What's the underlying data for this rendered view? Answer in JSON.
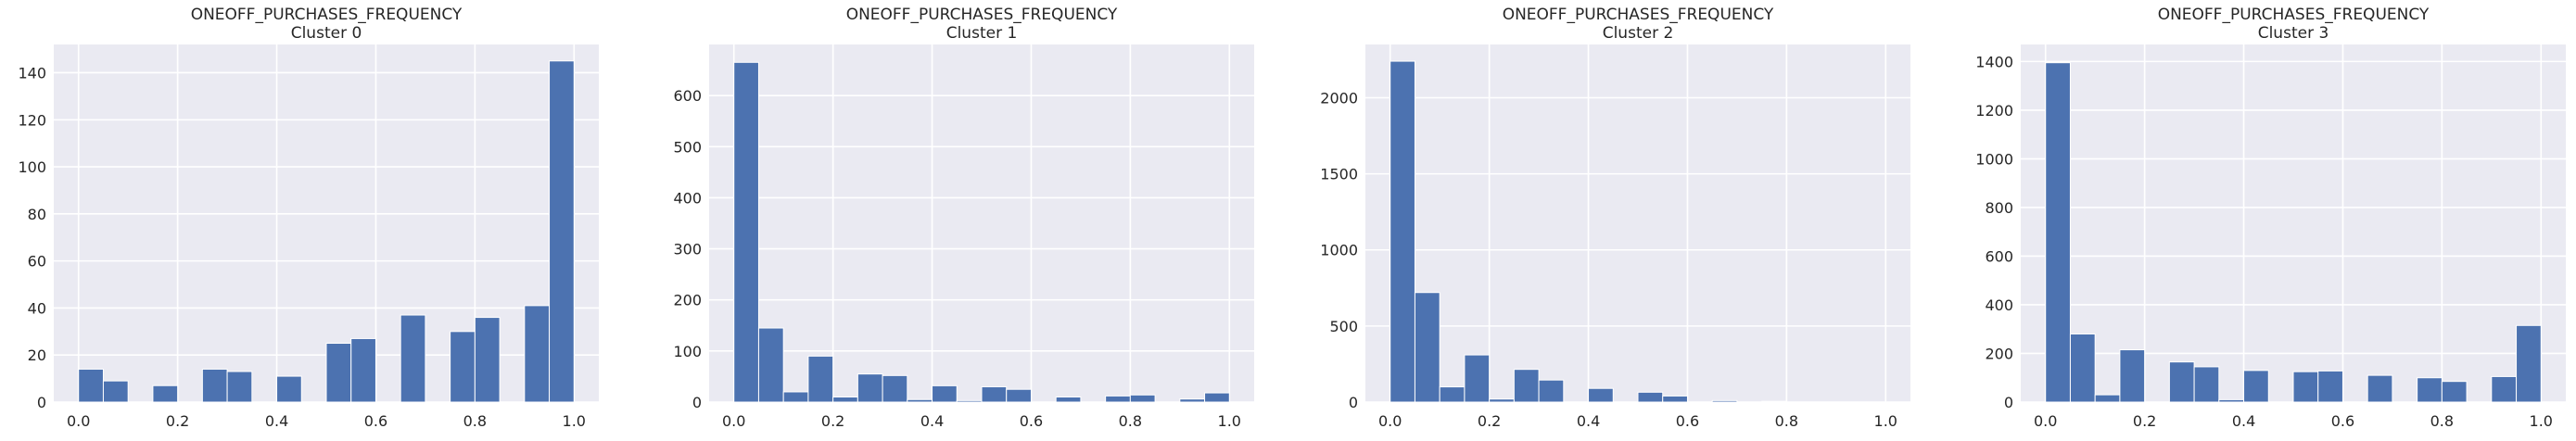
{
  "chart_data": [
    {
      "type": "bar",
      "title": "ONEOFF_PURCHASES_FREQUENCY",
      "subtitle": "Cluster 0",
      "xlim": [
        -0.05,
        1.05
      ],
      "ylim": [
        0,
        152
      ],
      "xticks": [
        0.0,
        0.2,
        0.4,
        0.6,
        0.8,
        1.0
      ],
      "xtick_labels": [
        "0.0",
        "0.2",
        "0.4",
        "0.6",
        "0.8",
        "1.0"
      ],
      "yticks": [
        0,
        20,
        40,
        60,
        80,
        100,
        120,
        140
      ],
      "ytick_labels": [
        "0",
        "20",
        "40",
        "60",
        "80",
        "100",
        "120",
        "140"
      ],
      "bin_edges": [
        0.0,
        0.05,
        0.1,
        0.15,
        0.2,
        0.25,
        0.3,
        0.35,
        0.4,
        0.45,
        0.5,
        0.55,
        0.6,
        0.65,
        0.7,
        0.75,
        0.8,
        0.85,
        0.9,
        0.95,
        1.0
      ],
      "values": [
        14,
        9,
        0,
        7,
        0,
        14,
        13,
        0,
        11,
        0,
        25,
        27,
        0,
        37,
        0,
        30,
        36,
        0,
        41,
        145
      ],
      "bar_color": "#4c72b0",
      "grid": true
    },
    {
      "type": "bar",
      "title": "ONEOFF_PURCHASES_FREQUENCY",
      "subtitle": "Cluster 1",
      "xlim": [
        -0.05,
        1.05
      ],
      "ylim": [
        0,
        700
      ],
      "xticks": [
        0.0,
        0.2,
        0.4,
        0.6,
        0.8,
        1.0
      ],
      "xtick_labels": [
        "0.0",
        "0.2",
        "0.4",
        "0.6",
        "0.8",
        "1.0"
      ],
      "yticks": [
        0,
        100,
        200,
        300,
        400,
        500,
        600
      ],
      "ytick_labels": [
        "0",
        "100",
        "200",
        "300",
        "400",
        "500",
        "600"
      ],
      "bin_edges": [
        0.0,
        0.05,
        0.1,
        0.15,
        0.2,
        0.25,
        0.3,
        0.35,
        0.4,
        0.45,
        0.5,
        0.55,
        0.6,
        0.65,
        0.7,
        0.75,
        0.8,
        0.85,
        0.9,
        0.95,
        1.0
      ],
      "values": [
        665,
        145,
        20,
        90,
        10,
        55,
        52,
        5,
        32,
        3,
        30,
        25,
        0,
        10,
        0,
        12,
        14,
        0,
        6,
        18
      ],
      "bar_color": "#4c72b0",
      "grid": true
    },
    {
      "type": "bar",
      "title": "ONEOFF_PURCHASES_FREQUENCY",
      "subtitle": "Cluster 2",
      "xlim": [
        -0.05,
        1.05
      ],
      "ylim": [
        0,
        2350
      ],
      "xticks": [
        0.0,
        0.2,
        0.4,
        0.6,
        0.8,
        1.0
      ],
      "xtick_labels": [
        "0.0",
        "0.2",
        "0.4",
        "0.6",
        "0.8",
        "1.0"
      ],
      "yticks": [
        0,
        500,
        1000,
        1500,
        2000
      ],
      "ytick_labels": [
        "0",
        "500",
        "1000",
        "1500",
        "2000"
      ],
      "bin_edges": [
        0.0,
        0.05,
        0.1,
        0.15,
        0.2,
        0.25,
        0.3,
        0.35,
        0.4,
        0.45,
        0.5,
        0.55,
        0.6,
        0.65,
        0.7,
        0.75,
        0.8,
        0.85,
        0.9,
        0.95,
        1.0
      ],
      "values": [
        2240,
        720,
        100,
        310,
        20,
        215,
        145,
        0,
        90,
        0,
        65,
        40,
        0,
        10,
        0,
        5,
        0,
        0,
        0,
        0
      ],
      "bar_color": "#4c72b0",
      "grid": true
    },
    {
      "type": "bar",
      "title": "ONEOFF_PURCHASES_FREQUENCY",
      "subtitle": "Cluster 3",
      "xlim": [
        -0.05,
        1.05
      ],
      "ylim": [
        0,
        1470
      ],
      "xticks": [
        0.0,
        0.2,
        0.4,
        0.6,
        0.8,
        1.0
      ],
      "xtick_labels": [
        "0.0",
        "0.2",
        "0.4",
        "0.6",
        "0.8",
        "1.0"
      ],
      "yticks": [
        0,
        200,
        400,
        600,
        800,
        1000,
        1200,
        1400
      ],
      "ytick_labels": [
        "0",
        "200",
        "400",
        "600",
        "800",
        "1000",
        "1200",
        "1400"
      ],
      "bin_edges": [
        0.0,
        0.05,
        0.1,
        0.15,
        0.2,
        0.25,
        0.3,
        0.35,
        0.4,
        0.45,
        0.5,
        0.55,
        0.6,
        0.65,
        0.7,
        0.75,
        0.8,
        0.85,
        0.9,
        0.95,
        1.0
      ],
      "values": [
        1395,
        280,
        30,
        215,
        0,
        165,
        145,
        10,
        130,
        0,
        125,
        128,
        0,
        110,
        0,
        100,
        85,
        0,
        105,
        315
      ],
      "bar_color": "#4c72b0",
      "grid": true
    }
  ]
}
